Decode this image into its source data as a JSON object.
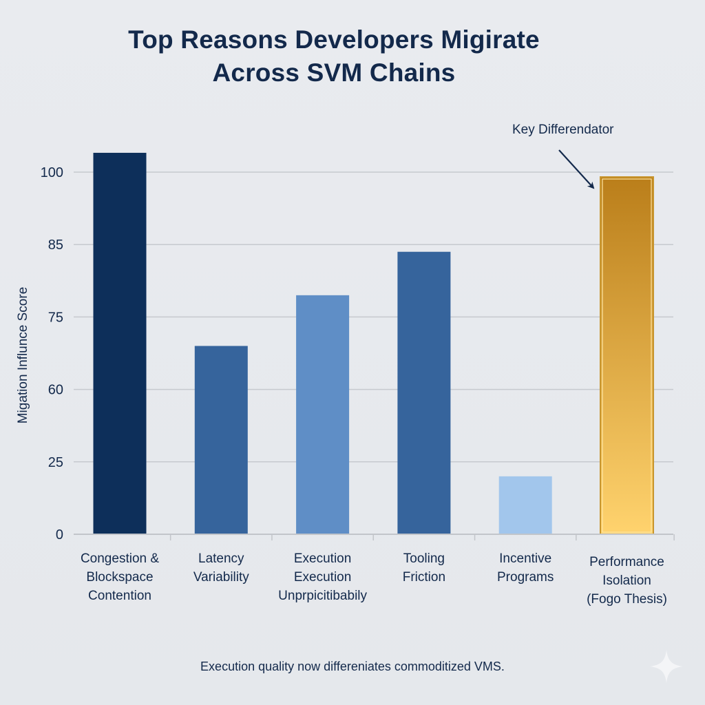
{
  "chart_data": {
    "type": "bar",
    "title": "Top Reasons Developers Migirate Across SVM Chains",
    "title_lines": [
      "Top Reasons Developers Migirate",
      "Across SVM Chains"
    ],
    "xlabel": "",
    "ylabel": "Migation Influnce Score",
    "y_ticks": [
      0,
      25,
      60,
      75,
      85,
      100
    ],
    "y_scale_note": "tick labels evenly spaced (non-linear)",
    "ylim": [
      0,
      105
    ],
    "grid": true,
    "categories": [
      "Congestion & Blockspace Contention",
      "Latency Variability",
      "Execution Execution Unprpicitibabily",
      "Tooling Friction",
      "Incentive Programs",
      "Performance Isolation (Fogo Thesis)"
    ],
    "category_lines": [
      [
        "Congestion &",
        "Blockspace",
        "Contention"
      ],
      [
        "Latency",
        "Variability"
      ],
      [
        "Execution",
        "Execution",
        "Unprpicitibabily"
      ],
      [
        "Tooling",
        "Friction"
      ],
      [
        "Incentive",
        "Programs"
      ],
      [
        "Performance",
        "Isolation",
        "(Fogo Thesis)"
      ]
    ],
    "values": [
      104,
      69,
      78,
      84,
      20,
      99
    ],
    "colors": [
      "#0d2f5a",
      "#36649c",
      "#5f8ec6",
      "#36649c",
      "#a2c6ec",
      "gold-gradient"
    ],
    "highlight": {
      "index": 5,
      "gradient_top": "#ba7e1a",
      "gradient_bottom": "#ffd36e",
      "outline": "#c8962f"
    },
    "annotation": {
      "text": "Key Differendator",
      "target_index": 5
    },
    "footnote": "Execution quality now differeniates commoditized VMS."
  },
  "icons": {
    "corner": "sparkle-icon"
  }
}
